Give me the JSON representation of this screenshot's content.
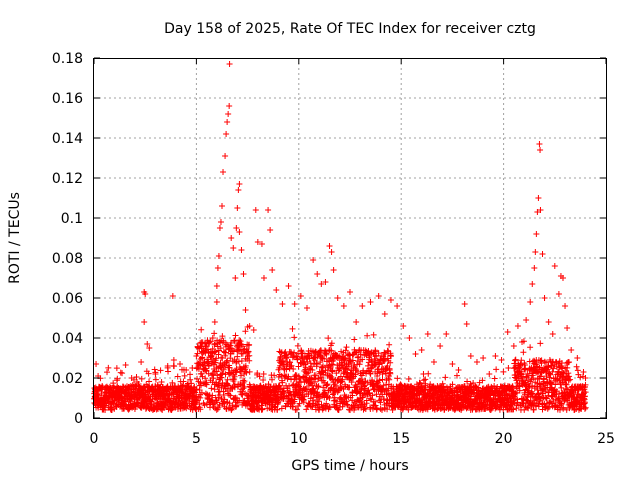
{
  "chart_data": {
    "type": "scatter",
    "title": "Day 158 of 2025, Rate Of TEC Index for receiver cztg",
    "xlabel": "GPS time / hours",
    "ylabel": "ROTI / TECUs",
    "xlim": [
      0,
      25
    ],
    "ylim": [
      0,
      0.18
    ],
    "xticks": [
      "0",
      "5",
      "10",
      "15",
      "20",
      "25"
    ],
    "yticks": [
      "0",
      "0.02",
      "0.04",
      "0.06",
      "0.08",
      "0.1",
      "0.12",
      "0.14",
      "0.16",
      "0.18"
    ],
    "grid": true,
    "marker": "+",
    "series": [
      {
        "name": "ROTI",
        "color": "#ff0000",
        "points": [
          [
            0.1,
            0.027
          ],
          [
            0.2,
            0.021
          ],
          [
            0.4,
            0.016
          ],
          [
            0.6,
            0.013
          ],
          [
            0.9,
            0.011
          ],
          [
            1.2,
            0.015
          ],
          [
            1.5,
            0.012
          ],
          [
            1.8,
            0.016
          ],
          [
            2.1,
            0.018
          ],
          [
            2.3,
            0.028
          ],
          [
            2.45,
            0.063
          ],
          [
            2.5,
            0.062
          ],
          [
            2.45,
            0.048
          ],
          [
            2.6,
            0.037
          ],
          [
            2.7,
            0.035
          ],
          [
            3.0,
            0.022
          ],
          [
            3.3,
            0.018
          ],
          [
            3.6,
            0.026
          ],
          [
            3.85,
            0.061
          ],
          [
            3.9,
            0.029
          ],
          [
            4.2,
            0.027
          ],
          [
            4.5,
            0.024
          ],
          [
            4.8,
            0.025
          ],
          [
            5.0,
            0.031
          ],
          [
            5.2,
            0.036
          ],
          [
            5.4,
            0.028
          ],
          [
            5.6,
            0.033
          ],
          [
            5.8,
            0.04
          ],
          [
            5.9,
            0.048
          ],
          [
            6.0,
            0.058
          ],
          [
            6.0,
            0.066
          ],
          [
            6.05,
            0.075
          ],
          [
            6.1,
            0.081
          ],
          [
            6.15,
            0.095
          ],
          [
            6.2,
            0.098
          ],
          [
            6.25,
            0.106
          ],
          [
            6.3,
            0.123
          ],
          [
            6.4,
            0.131
          ],
          [
            6.45,
            0.142
          ],
          [
            6.5,
            0.148
          ],
          [
            6.55,
            0.152
          ],
          [
            6.6,
            0.156
          ],
          [
            6.62,
            0.177
          ],
          [
            6.7,
            0.09
          ],
          [
            6.8,
            0.085
          ],
          [
            6.9,
            0.07
          ],
          [
            6.95,
            0.095
          ],
          [
            7.0,
            0.105
          ],
          [
            7.05,
            0.114
          ],
          [
            7.1,
            0.117
          ],
          [
            7.1,
            0.093
          ],
          [
            7.2,
            0.084
          ],
          [
            7.3,
            0.072
          ],
          [
            7.4,
            0.054
          ],
          [
            7.6,
            0.046
          ],
          [
            7.8,
            0.044
          ],
          [
            7.9,
            0.104
          ],
          [
            8.0,
            0.088
          ],
          [
            8.2,
            0.087
          ],
          [
            8.3,
            0.07
          ],
          [
            8.5,
            0.104
          ],
          [
            8.6,
            0.094
          ],
          [
            8.7,
            0.074
          ],
          [
            8.9,
            0.064
          ],
          [
            9.2,
            0.057
          ],
          [
            9.5,
            0.066
          ],
          [
            9.8,
            0.057
          ],
          [
            10.1,
            0.061
          ],
          [
            10.4,
            0.055
          ],
          [
            10.7,
            0.079
          ],
          [
            10.9,
            0.072
          ],
          [
            11.1,
            0.067
          ],
          [
            11.3,
            0.068
          ],
          [
            11.5,
            0.086
          ],
          [
            11.6,
            0.083
          ],
          [
            11.7,
            0.074
          ],
          [
            11.9,
            0.06
          ],
          [
            12.2,
            0.056
          ],
          [
            12.5,
            0.063
          ],
          [
            12.8,
            0.048
          ],
          [
            13.1,
            0.056
          ],
          [
            13.5,
            0.058
          ],
          [
            13.9,
            0.061
          ],
          [
            14.2,
            0.052
          ],
          [
            14.5,
            0.059
          ],
          [
            14.8,
            0.056
          ],
          [
            15.1,
            0.046
          ],
          [
            15.4,
            0.04
          ],
          [
            15.7,
            0.032
          ],
          [
            16.0,
            0.034
          ],
          [
            16.3,
            0.042
          ],
          [
            16.6,
            0.028
          ],
          [
            16.9,
            0.036
          ],
          [
            17.2,
            0.042
          ],
          [
            17.5,
            0.027
          ],
          [
            17.8,
            0.024
          ],
          [
            18.1,
            0.057
          ],
          [
            18.2,
            0.047
          ],
          [
            18.4,
            0.031
          ],
          [
            18.7,
            0.028
          ],
          [
            19.0,
            0.03
          ],
          [
            19.3,
            0.022
          ],
          [
            19.6,
            0.031
          ],
          [
            19.9,
            0.029
          ],
          [
            20.2,
            0.043
          ],
          [
            20.5,
            0.036
          ],
          [
            20.7,
            0.046
          ],
          [
            20.9,
            0.038
          ],
          [
            21.1,
            0.049
          ],
          [
            21.3,
            0.058
          ],
          [
            21.4,
            0.067
          ],
          [
            21.5,
            0.075
          ],
          [
            21.55,
            0.083
          ],
          [
            21.6,
            0.092
          ],
          [
            21.65,
            0.103
          ],
          [
            21.7,
            0.11
          ],
          [
            21.75,
            0.137
          ],
          [
            21.78,
            0.134
          ],
          [
            21.8,
            0.104
          ],
          [
            21.9,
            0.082
          ],
          [
            22.0,
            0.06
          ],
          [
            22.2,
            0.048
          ],
          [
            22.4,
            0.042
          ],
          [
            22.5,
            0.076
          ],
          [
            22.7,
            0.062
          ],
          [
            22.8,
            0.071
          ],
          [
            22.9,
            0.07
          ],
          [
            23.0,
            0.056
          ],
          [
            23.1,
            0.045
          ],
          [
            23.3,
            0.034
          ],
          [
            23.6,
            0.03
          ],
          [
            23.9,
            0.023
          ],
          [
            24.0,
            0.02
          ]
        ]
      }
    ]
  }
}
